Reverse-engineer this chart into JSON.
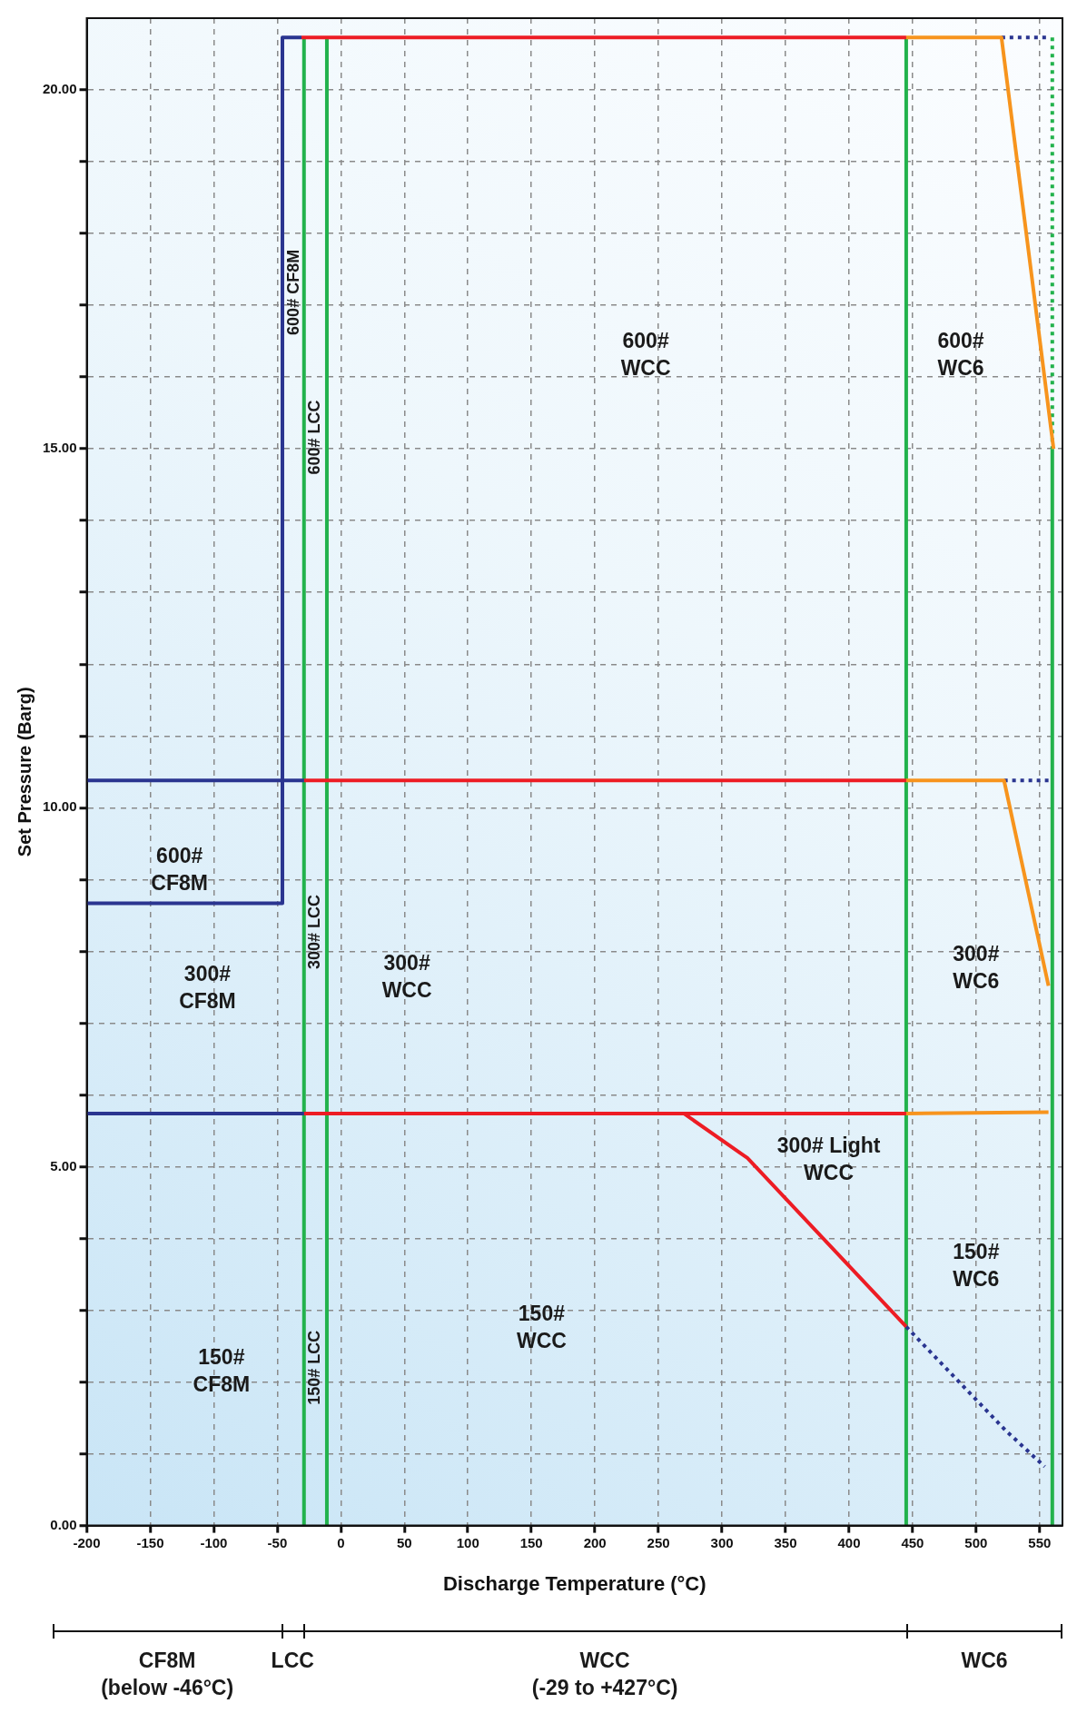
{
  "chart_data": {
    "type": "line",
    "xlabel": "Discharge Temperature (°C)",
    "ylabel": "Set Pressure (Barg)",
    "xlim": [
      -200,
      568
    ],
    "ylim": [
      0,
      21
    ],
    "xticks": [
      -200,
      -150,
      -100,
      -50,
      0,
      50,
      100,
      150,
      200,
      250,
      300,
      350,
      400,
      450,
      500,
      550
    ],
    "yticks": [
      {
        "value": 0,
        "label": "0.00"
      },
      {
        "value": 1,
        "label": null
      },
      {
        "value": 2,
        "label": null
      },
      {
        "value": 3,
        "label": null
      },
      {
        "value": 4,
        "label": null
      },
      {
        "value": 5,
        "label": "5.00"
      },
      {
        "value": 6,
        "label": null
      },
      {
        "value": 7,
        "label": null
      },
      {
        "value": 8,
        "label": null
      },
      {
        "value": 9,
        "label": null
      },
      {
        "value": 10,
        "label": "10.00"
      },
      {
        "value": 11,
        "label": null
      },
      {
        "value": 12,
        "label": null
      },
      {
        "value": 13,
        "label": null
      },
      {
        "value": 14,
        "label": null
      },
      {
        "value": 15,
        "label": "15.00"
      },
      {
        "value": 16,
        "label": null
      },
      {
        "value": 17,
        "label": null
      },
      {
        "value": 18,
        "label": null
      },
      {
        "value": 19,
        "label": null
      },
      {
        "value": 20,
        "label": "20.00"
      }
    ],
    "grid": true,
    "legend": false,
    "marker": "none",
    "line_style": "solid",
    "series": [
      {
        "color": "#2a3590",
        "x": [
          -200,
          -46,
          -46,
          -31
        ],
        "values": [
          8.67,
          8.67,
          20.73,
          20.73
        ]
      },
      {
        "color": "#2a3590",
        "x": [
          -200,
          -29
        ],
        "values": [
          10.38,
          10.38
        ]
      },
      {
        "color": "#2a3590",
        "x": [
          -200,
          -29
        ],
        "values": [
          5.74,
          5.74
        ]
      },
      {
        "color": "#ed1c24",
        "x": [
          -31,
          445
        ],
        "values": [
          20.73,
          20.73
        ]
      },
      {
        "color": "#ed1c24",
        "x": [
          -29,
          445
        ],
        "values": [
          10.38,
          10.38
        ]
      },
      {
        "color": "#ed1c24",
        "x": [
          -29,
          445
        ],
        "values": [
          5.74,
          5.74
        ]
      },
      {
        "color": "#ed1c24",
        "x": [
          270,
          320,
          445
        ],
        "values": [
          5.74,
          5.12,
          2.77
        ]
      },
      {
        "color": "#f7941d",
        "x": [
          445,
          520,
          561
        ],
        "values": [
          20.73,
          20.73,
          15.0
        ]
      },
      {
        "color": "#f7941d",
        "x": [
          445,
          522,
          557
        ],
        "values": [
          10.38,
          10.38,
          7.52
        ]
      },
      {
        "color": "#f7941d",
        "x": [
          445,
          557
        ],
        "values": [
          5.74,
          5.76
        ]
      },
      {
        "color": "#2a3590",
        "line_style": "dotted",
        "x": [
          520,
          557
        ],
        "values": [
          20.73,
          20.73
        ]
      },
      {
        "color": "#2a3590",
        "line_style": "dotted",
        "x": [
          522,
          557
        ],
        "values": [
          10.38,
          10.38
        ]
      },
      {
        "color": "#2a3590",
        "line_style": "dotted",
        "x": [
          445,
          523,
          554
        ],
        "values": [
          2.77,
          1.33,
          0.82
        ]
      },
      {
        "color": "#22b24c",
        "line_style": "dotted",
        "x": [
          560,
          560
        ],
        "values": [
          20.73,
          15.0
        ]
      },
      {
        "color": "#22b24c",
        "x": [
          -29,
          -29
        ],
        "values": [
          0,
          20.73
        ]
      },
      {
        "color": "#22b24c",
        "x": [
          -11,
          -11
        ],
        "values": [
          0,
          20.73
        ]
      },
      {
        "color": "#22b24c",
        "x": [
          445,
          445
        ],
        "values": [
          0,
          20.73
        ]
      },
      {
        "color": "#22b24c",
        "x": [
          560,
          560
        ],
        "values": [
          0,
          15.0
        ]
      }
    ],
    "annotations": [
      "600#\nWCC",
      "600#\nWC6",
      "600#\nCF8M",
      "300#\nCF8M",
      "300#\nWCC",
      "300#\nWC6",
      "300# Light\nWCC",
      "150#\nWC6",
      "150#\nWCC",
      "150#\nCF8M",
      "600# CF8M",
      "600# LCC",
      "300# LCC",
      "150# LCC",
      "CF8M\n(below -46°C)",
      "LCC",
      "WCC\n(-29 to +427°C)",
      "WC6"
    ]
  }
}
